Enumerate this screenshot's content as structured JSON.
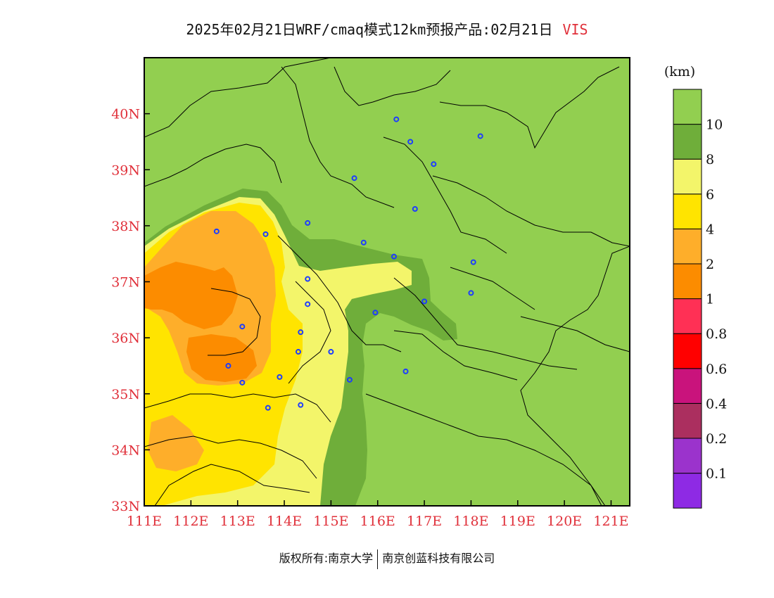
{
  "title": {
    "main": "2025年02月21日WRF/cmaq模式12km预报产品:02月21日",
    "variable": "VIS"
  },
  "map": {
    "lon_range": [
      111,
      121.4
    ],
    "lat_range": [
      33,
      41
    ],
    "lat_ticks": [
      {
        "value": 33,
        "label": "33N"
      },
      {
        "value": 34,
        "label": "34N"
      },
      {
        "value": 35,
        "label": "35N"
      },
      {
        "value": 36,
        "label": "36N"
      },
      {
        "value": 37,
        "label": "37N"
      },
      {
        "value": 38,
        "label": "38N"
      },
      {
        "value": 39,
        "label": "39N"
      },
      {
        "value": 40,
        "label": "40N"
      }
    ],
    "lon_ticks": [
      {
        "value": 111,
        "label": "111E"
      },
      {
        "value": 112,
        "label": "112E"
      },
      {
        "value": 113,
        "label": "113E"
      },
      {
        "value": 114,
        "label": "114E"
      },
      {
        "value": 115,
        "label": "115E"
      },
      {
        "value": 116,
        "label": "116E"
      },
      {
        "value": 117,
        "label": "117E"
      },
      {
        "value": 118,
        "label": "118E"
      },
      {
        "value": 119,
        "label": "119E"
      },
      {
        "value": 120,
        "label": "120E"
      },
      {
        "value": 121,
        "label": "121E"
      }
    ],
    "cities": [
      [
        116.4,
        39.9
      ],
      [
        117.2,
        39.1
      ],
      [
        118.2,
        39.6
      ],
      [
        116.7,
        39.5
      ],
      [
        115.5,
        38.85
      ],
      [
        116.8,
        38.3
      ],
      [
        114.5,
        38.05
      ],
      [
        115.7,
        37.7
      ],
      [
        116.35,
        37.45
      ],
      [
        117.0,
        36.65
      ],
      [
        118.05,
        37.35
      ],
      [
        118.0,
        36.8
      ],
      [
        115.95,
        36.45
      ],
      [
        116.6,
        35.4
      ],
      [
        114.5,
        37.05
      ],
      [
        114.5,
        36.6
      ],
      [
        114.35,
        36.1
      ],
      [
        115.0,
        35.75
      ],
      [
        114.3,
        35.75
      ],
      [
        115.4,
        35.25
      ],
      [
        113.65,
        34.75
      ],
      [
        114.35,
        34.8
      ],
      [
        113.9,
        35.3
      ],
      [
        113.1,
        35.2
      ],
      [
        112.8,
        35.5
      ],
      [
        113.1,
        36.2
      ],
      [
        113.6,
        37.85
      ],
      [
        112.55,
        37.9
      ]
    ],
    "colors": {
      "ocean_land_green": "#92cf50",
      "mid_green": "#6fae3a",
      "light_yellow": "#f3f56a",
      "yellow": "#ffe400",
      "light_orange": "#feae2a",
      "orange": "#fc8c00",
      "city_marker": "#1d3cff"
    }
  },
  "legend": {
    "unit": "(km)",
    "colors": [
      "#8e2ae4",
      "#9b33cc",
      "#ab2f5f",
      "#c9137c",
      "#ff0000",
      "#ff3055",
      "#fc8c00",
      "#feae2a",
      "#ffe400",
      "#f3f56a",
      "#6fae3a",
      "#92cf50"
    ],
    "labels": [
      "0.1",
      "0.2",
      "0.4",
      "0.6",
      "0.8",
      "1",
      "2",
      "4",
      "6",
      "8",
      "10"
    ]
  },
  "footer": {
    "left": "版权所有:南京大学",
    "right": "南京创蓝科技有限公司"
  }
}
